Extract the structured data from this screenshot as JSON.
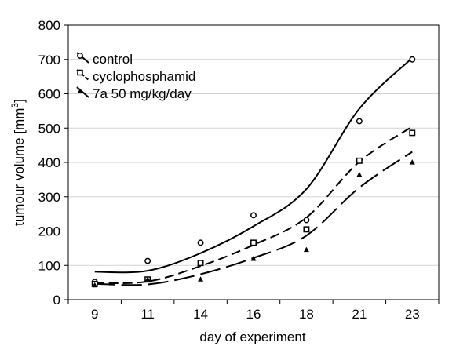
{
  "chart_data": {
    "type": "scatter",
    "title": "",
    "xlabel": "day of experiment",
    "ylabel": "tumour volume [mm",
    "ylabel_sup": "3",
    "ylabel_close": "]",
    "x": [
      9,
      11,
      14,
      16,
      18,
      21,
      23
    ],
    "x_tick_labels": [
      "9",
      "11",
      "14",
      "16",
      "18",
      "21",
      "23"
    ],
    "y_ticks": [
      0,
      100,
      200,
      300,
      400,
      500,
      600,
      700,
      800
    ],
    "y_tick_labels": [
      "0",
      "100",
      "200",
      "300",
      "400",
      "500",
      "600",
      "700",
      "800"
    ],
    "ylim": [
      0,
      800
    ],
    "grid": "horizontal",
    "legend_position": "top-left",
    "series": [
      {
        "name": "control",
        "marker": "circle",
        "line_style": "solid",
        "values": [
          52,
          113,
          166,
          246,
          232,
          520,
          700
        ],
        "fit": [
          81.4,
          84.3,
          135.6,
          213.9,
          322.5,
          556.5,
          704.3
        ]
      },
      {
        "name": "cyclophosphamid",
        "marker": "square",
        "line_style": "dashed",
        "values": [
          46,
          59,
          107,
          166,
          205,
          405,
          486
        ],
        "fit": [
          48.4,
          53.0,
          98.0,
          159.6,
          239.6,
          402.1,
          504.4
        ]
      },
      {
        "name": "7a 50 mg/kg/day",
        "marker": "triangle",
        "line_style": "long-dash",
        "values": [
          43,
          60,
          60,
          120,
          146,
          365,
          401
        ],
        "fit": [
          46.2,
          44.6,
          74.3,
          121.6,
          186.8,
          326.6,
          430.8
        ]
      }
    ],
    "colors": {
      "marks": "#000000",
      "grid": "#d3d3d3",
      "frame": "#000000"
    }
  }
}
